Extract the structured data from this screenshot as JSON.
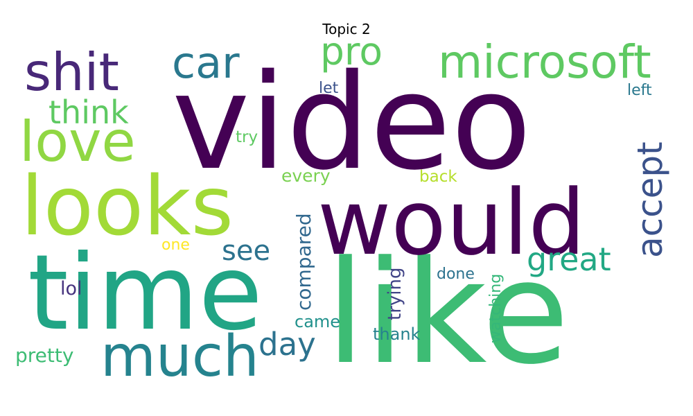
{
  "title": "Topic 2",
  "words": [
    {
      "id": "video",
      "text": "video"
    },
    {
      "id": "like",
      "text": "like"
    },
    {
      "id": "time",
      "text": "time"
    },
    {
      "id": "would",
      "text": "would"
    },
    {
      "id": "looks",
      "text": "looks"
    },
    {
      "id": "much",
      "text": "much"
    },
    {
      "id": "love",
      "text": "love"
    },
    {
      "id": "shit",
      "text": "shit"
    },
    {
      "id": "microsoft",
      "text": "microsoft"
    },
    {
      "id": "car",
      "text": "car"
    },
    {
      "id": "pro",
      "text": "pro"
    },
    {
      "id": "think",
      "text": "think"
    },
    {
      "id": "accept",
      "text": "accept"
    },
    {
      "id": "great",
      "text": "great"
    },
    {
      "id": "day",
      "text": "day"
    },
    {
      "id": "see",
      "text": "see"
    },
    {
      "id": "compared",
      "text": "compared"
    },
    {
      "id": "trying",
      "text": "trying"
    },
    {
      "id": "watching",
      "text": "watching"
    },
    {
      "id": "every",
      "text": "every"
    },
    {
      "id": "back",
      "text": "back"
    },
    {
      "id": "try",
      "text": "try"
    },
    {
      "id": "let",
      "text": "let"
    },
    {
      "id": "left",
      "text": "left"
    },
    {
      "id": "one",
      "text": "one"
    },
    {
      "id": "lol",
      "text": "lol"
    },
    {
      "id": "came",
      "text": "came"
    },
    {
      "id": "done",
      "text": "done"
    },
    {
      "id": "thank",
      "text": "thank"
    },
    {
      "id": "pretty",
      "text": "pretty"
    }
  ]
}
